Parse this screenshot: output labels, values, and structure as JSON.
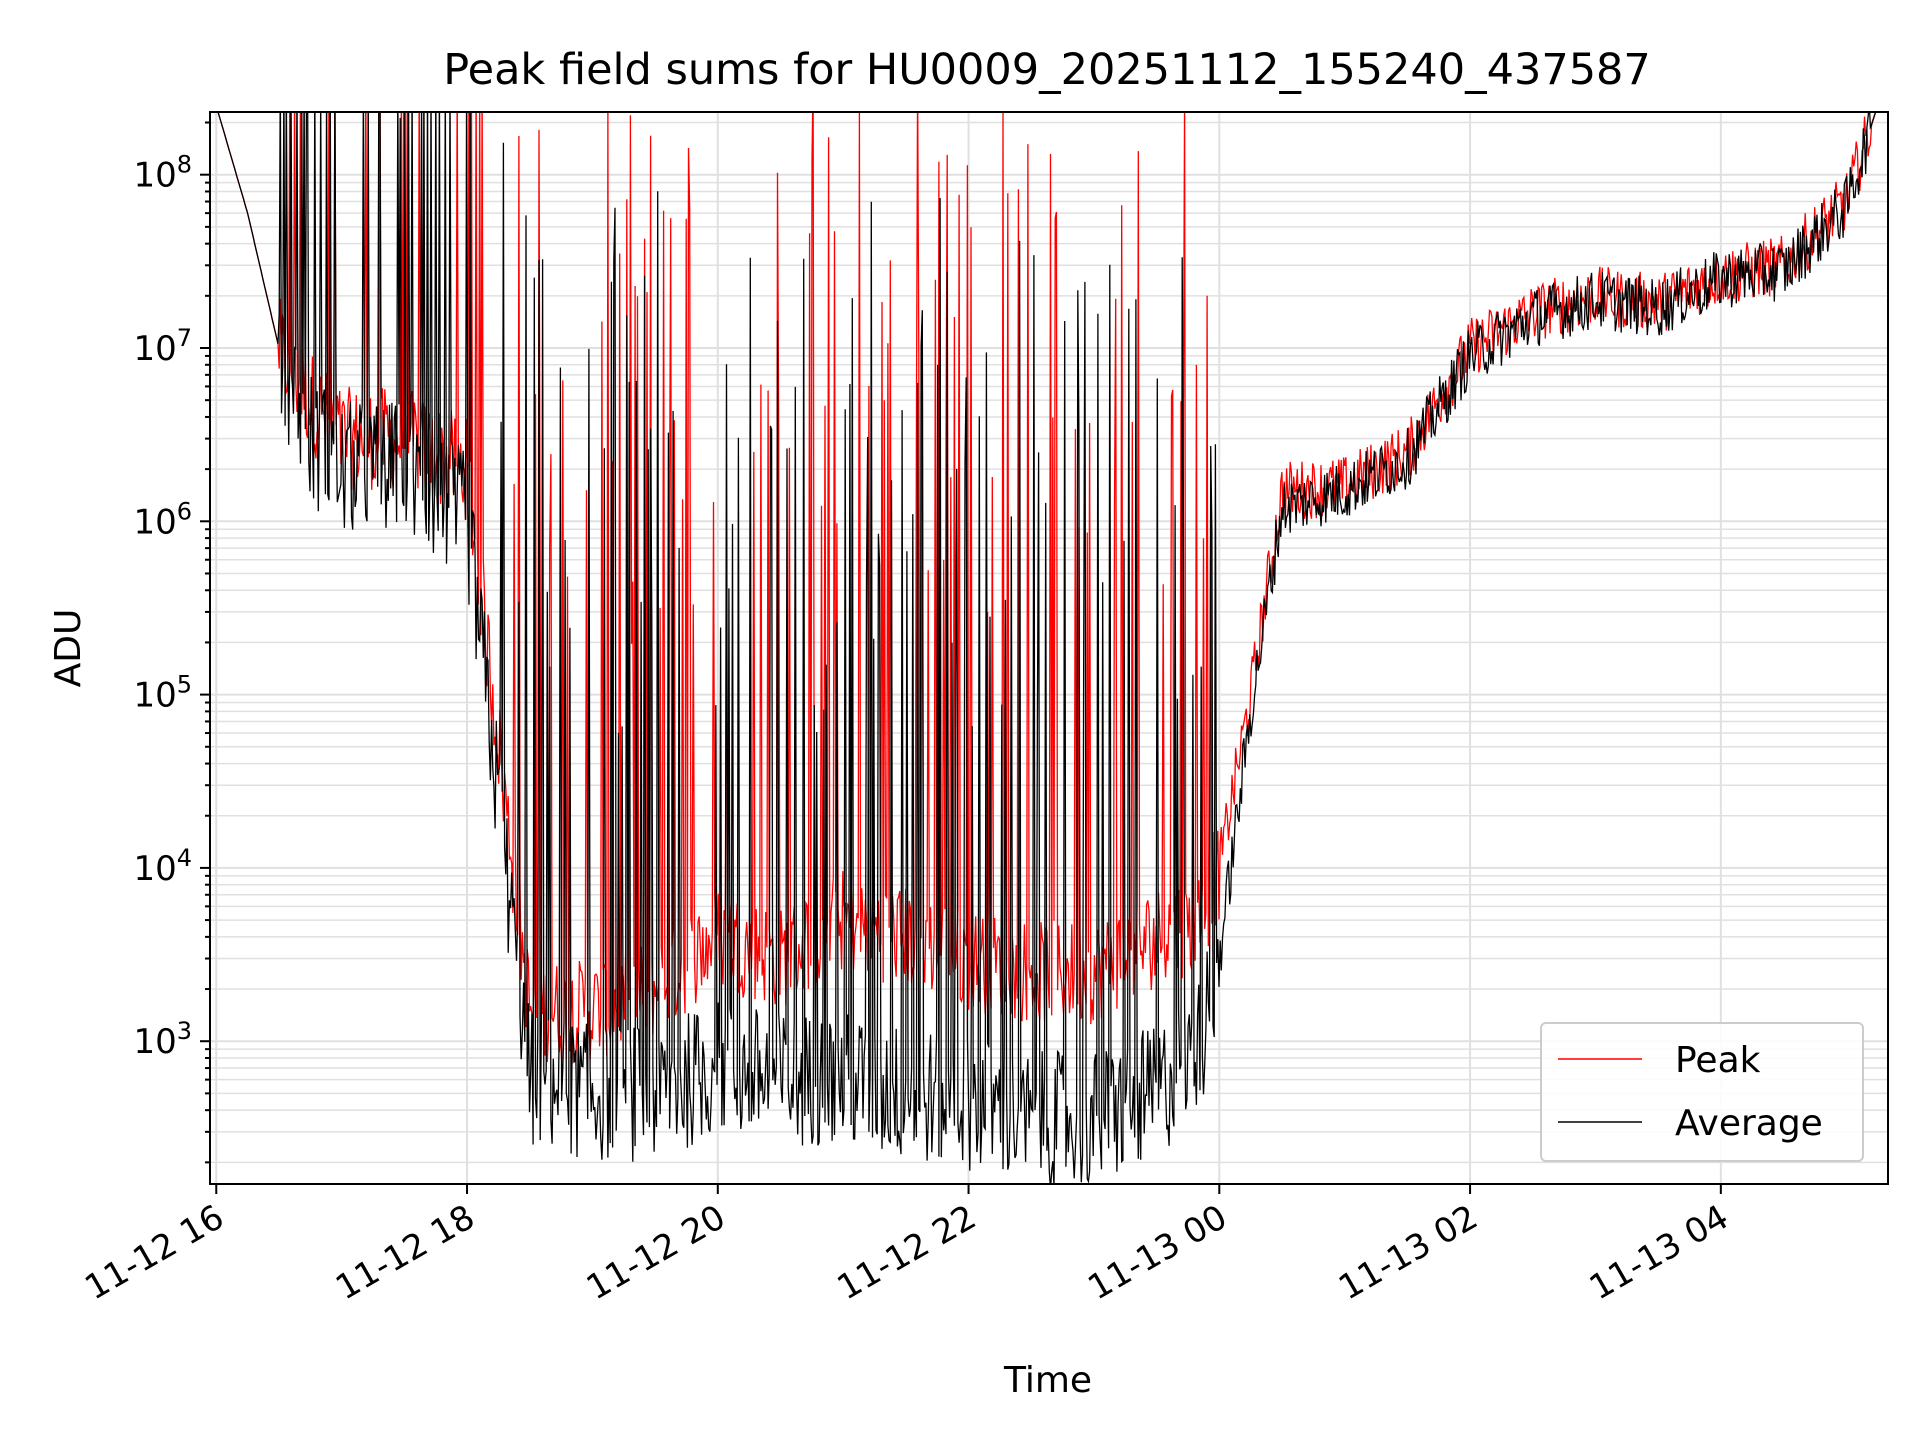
{
  "chart_data": {
    "type": "line",
    "title": "Peak field sums for HU0009_20251112_155240_437587",
    "xlabel": "Time",
    "ylabel": "ADU",
    "yscale": "log",
    "ylim": [
      150,
      230000000
    ],
    "xlim": [
      "11-12 15:57",
      "11-13 05:20"
    ],
    "grid": true,
    "legend_position": "lower-right",
    "x_ticks": [
      "11-12 16",
      "11-12 18",
      "11-12 20",
      "11-12 22",
      "11-13 00",
      "11-13 02",
      "11-13 04"
    ],
    "y_ticks": [
      {
        "base": "10",
        "exp": "3",
        "value": 1000
      },
      {
        "base": "10",
        "exp": "4",
        "value": 10000
      },
      {
        "base": "10",
        "exp": "5",
        "value": 100000
      },
      {
        "base": "10",
        "exp": "6",
        "value": 1000000
      },
      {
        "base": "10",
        "exp": "7",
        "value": 10000000
      },
      {
        "base": "10",
        "exp": "8",
        "value": 100000000
      }
    ],
    "colors": {
      "Peak": "#ff0000",
      "Average": "#000000"
    },
    "series": [
      {
        "name": "Peak",
        "x": [
          "11-12 16:00",
          "11-12 16:15",
          "11-12 16:30",
          "11-12 16:45",
          "11-12 17:00",
          "11-12 17:30",
          "11-12 18:00",
          "11-12 18:30",
          "11-12 19:00",
          "11-12 19:30",
          "11-12 20:00",
          "11-12 20:30",
          "11-12 21:00",
          "11-12 21:30",
          "11-12 22:00",
          "11-12 22:30",
          "11-12 23:00",
          "11-12 23:30",
          "11-12 23:50",
          "11-13 00:00",
          "11-13 00:15",
          "11-13 00:30",
          "11-13 01:00",
          "11-13 01:30",
          "11-13 02:00",
          "11-13 02:30",
          "11-13 03:00",
          "11-13 03:30",
          "11-13 04:00",
          "11-13 04:30",
          "11-13 05:00",
          "11-13 05:15"
        ],
        "y": [
          250000000,
          60000000,
          10000000,
          5000000,
          3000000,
          3000000,
          2000000,
          1500,
          1500,
          2000,
          4000,
          3000,
          5000,
          4000,
          3000,
          2500,
          2500,
          4000,
          5000,
          10000,
          100000,
          1500000,
          1600000,
          2500000,
          10000000,
          16000000,
          20000000,
          18000000,
          26000000,
          30000000,
          70000000,
          250000000
        ]
      },
      {
        "name": "Average",
        "x": [
          "11-12 16:00",
          "11-12 16:15",
          "11-12 16:30",
          "11-12 16:45",
          "11-12 17:00",
          "11-12 17:30",
          "11-12 18:00",
          "11-12 18:30",
          "11-12 19:00",
          "11-12 19:30",
          "11-12 20:00",
          "11-12 20:30",
          "11-12 21:00",
          "11-12 21:30",
          "11-12 22:00",
          "11-12 22:30",
          "11-12 23:00",
          "11-12 23:30",
          "11-12 23:50",
          "11-13 00:00",
          "11-13 00:15",
          "11-13 00:30",
          "11-13 01:00",
          "11-13 01:30",
          "11-13 02:00",
          "11-13 02:30",
          "11-13 03:00",
          "11-13 03:30",
          "11-13 04:00",
          "11-13 04:30",
          "11-13 05:00",
          "11-13 05:15"
        ],
        "y": [
          250000000,
          60000000,
          10000000,
          3000000,
          2000000,
          2000000,
          1000000,
          600,
          500,
          500,
          700,
          600,
          600,
          500,
          450,
          350,
          350,
          500,
          900,
          3000,
          80000,
          1200000,
          1500000,
          2300000,
          9000000,
          15000000,
          19000000,
          17000000,
          25000000,
          28000000,
          65000000,
          250000000
        ]
      }
    ]
  }
}
